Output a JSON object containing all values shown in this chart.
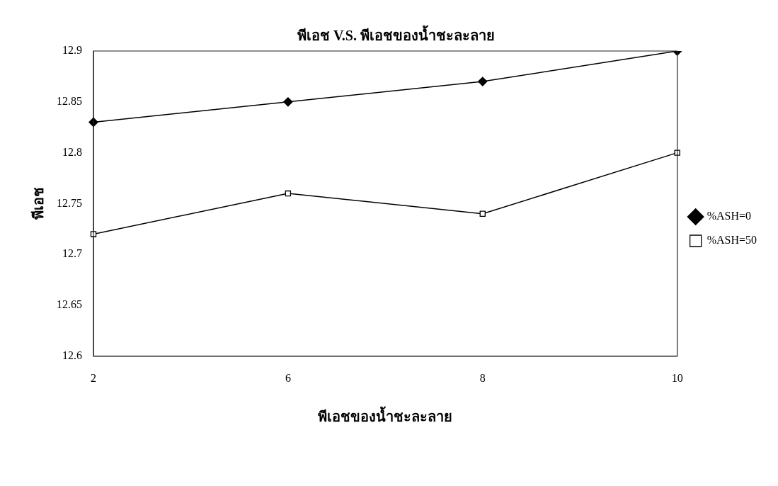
{
  "chart_data": {
    "type": "line",
    "title": "พีเอช V.S. พีเอชของน้ำชะละลาย",
    "xlabel": "พีเอชของน้ำชะละลาย",
    "ylabel": "พีเอช",
    "categories": [
      "2",
      "6",
      "8",
      "10"
    ],
    "series": [
      {
        "name": "%ASH=0",
        "color": "#000000",
        "marker": "diamond",
        "values": [
          12.83,
          12.85,
          12.87,
          12.9
        ]
      },
      {
        "name": "%ASH=50",
        "color": "#000000",
        "marker": "square",
        "values": [
          12.72,
          12.76,
          12.74,
          12.8
        ]
      }
    ],
    "ylim": [
      12.6,
      12.9
    ],
    "yticks": [
      12.6,
      12.65,
      12.7,
      12.75,
      12.8,
      12.85,
      12.9
    ],
    "grid": false,
    "legend": "right",
    "line_style": "solid"
  }
}
